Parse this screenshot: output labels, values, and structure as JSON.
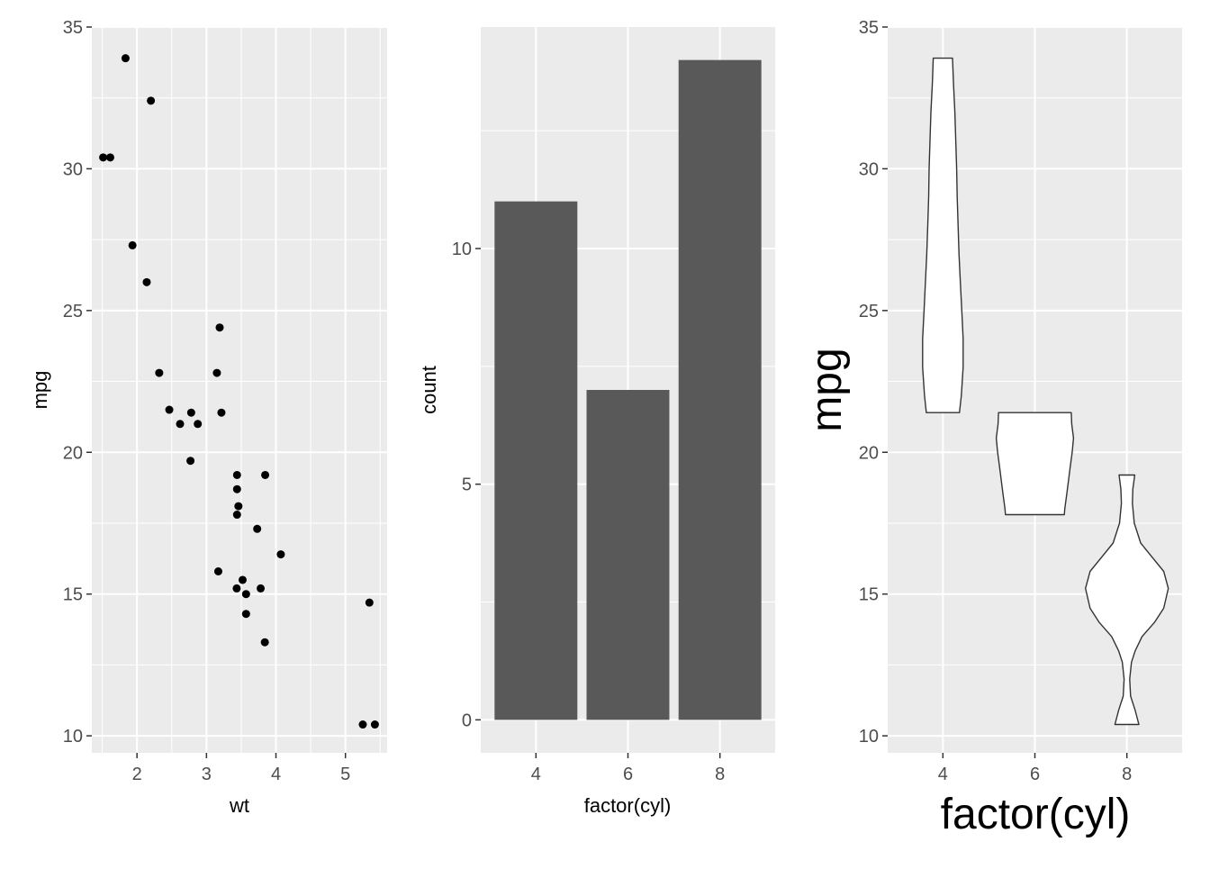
{
  "chart_data": [
    {
      "type": "scatter",
      "xlabel": "wt",
      "ylabel": "mpg",
      "xlim": [
        1.35,
        5.6
      ],
      "ylim": [
        9.4,
        35.0
      ],
      "x_ticks": [
        2,
        3,
        4,
        5
      ],
      "y_ticks": [
        10,
        15,
        20,
        25,
        30,
        35
      ],
      "grid": true,
      "points": [
        {
          "x": 2.62,
          "y": 21.0
        },
        {
          "x": 2.875,
          "y": 21.0
        },
        {
          "x": 2.32,
          "y": 22.8
        },
        {
          "x": 3.215,
          "y": 21.4
        },
        {
          "x": 3.44,
          "y": 18.7
        },
        {
          "x": 3.46,
          "y": 18.1
        },
        {
          "x": 3.57,
          "y": 14.3
        },
        {
          "x": 3.19,
          "y": 24.4
        },
        {
          "x": 3.15,
          "y": 22.8
        },
        {
          "x": 3.44,
          "y": 19.2
        },
        {
          "x": 3.44,
          "y": 17.8
        },
        {
          "x": 4.07,
          "y": 16.4
        },
        {
          "x": 3.73,
          "y": 17.3
        },
        {
          "x": 3.78,
          "y": 15.2
        },
        {
          "x": 5.25,
          "y": 10.4
        },
        {
          "x": 5.424,
          "y": 10.4
        },
        {
          "x": 5.345,
          "y": 14.7
        },
        {
          "x": 2.2,
          "y": 32.4
        },
        {
          "x": 1.615,
          "y": 30.4
        },
        {
          "x": 1.835,
          "y": 33.9
        },
        {
          "x": 2.465,
          "y": 21.5
        },
        {
          "x": 3.52,
          "y": 15.5
        },
        {
          "x": 3.435,
          "y": 15.2
        },
        {
          "x": 3.84,
          "y": 13.3
        },
        {
          "x": 3.845,
          "y": 19.2
        },
        {
          "x": 1.935,
          "y": 27.3
        },
        {
          "x": 2.14,
          "y": 26.0
        },
        {
          "x": 1.513,
          "y": 30.4
        },
        {
          "x": 3.17,
          "y": 15.8
        },
        {
          "x": 2.77,
          "y": 19.7
        },
        {
          "x": 3.57,
          "y": 15.0
        },
        {
          "x": 2.78,
          "y": 21.4
        }
      ]
    },
    {
      "type": "bar",
      "xlabel": "factor(cyl)",
      "ylabel": "count",
      "categories": [
        "4",
        "6",
        "8"
      ],
      "values": [
        11,
        7,
        14
      ],
      "ylim": [
        -0.7,
        14.7
      ],
      "y_ticks": [
        0,
        5,
        10
      ],
      "bar_color": "#595959",
      "grid": true
    },
    {
      "type": "violin",
      "xlabel": "factor(cyl)",
      "ylabel": "mpg",
      "categories": [
        "4",
        "6",
        "8"
      ],
      "ylim": [
        9.4,
        35.0
      ],
      "y_ticks": [
        10,
        15,
        20,
        25,
        30,
        35
      ],
      "grid": true,
      "fill": "#ffffff",
      "stroke": "#333333",
      "violins": [
        {
          "category": "4",
          "min": 21.4,
          "max": 33.9,
          "profile": [
            [
              21.4,
              0.36
            ],
            [
              22.0,
              0.4
            ],
            [
              23.0,
              0.44
            ],
            [
              24.0,
              0.44
            ],
            [
              25.0,
              0.41
            ],
            [
              26.0,
              0.38
            ],
            [
              27.0,
              0.35
            ],
            [
              28.0,
              0.33
            ],
            [
              29.0,
              0.31
            ],
            [
              30.0,
              0.3
            ],
            [
              31.0,
              0.28
            ],
            [
              32.0,
              0.26
            ],
            [
              33.0,
              0.23
            ],
            [
              33.9,
              0.21
            ]
          ]
        },
        {
          "category": "6",
          "min": 17.8,
          "max": 21.4,
          "profile": [
            [
              17.8,
              0.64
            ],
            [
              18.0,
              0.65
            ],
            [
              18.5,
              0.69
            ],
            [
              19.0,
              0.73
            ],
            [
              19.5,
              0.77
            ],
            [
              20.0,
              0.81
            ],
            [
              20.5,
              0.84
            ],
            [
              21.0,
              0.8
            ],
            [
              21.4,
              0.79
            ]
          ]
        },
        {
          "category": "8",
          "min": 10.4,
          "max": 19.2,
          "profile": [
            [
              10.4,
              0.26
            ],
            [
              10.9,
              0.18
            ],
            [
              11.4,
              0.08
            ],
            [
              12.0,
              0.06
            ],
            [
              12.6,
              0.1
            ],
            [
              13.0,
              0.18
            ],
            [
              13.5,
              0.33
            ],
            [
              14.0,
              0.6
            ],
            [
              14.5,
              0.8
            ],
            [
              15.2,
              0.9
            ],
            [
              15.8,
              0.8
            ],
            [
              16.3,
              0.55
            ],
            [
              16.8,
              0.3
            ],
            [
              17.5,
              0.16
            ],
            [
              18.2,
              0.12
            ],
            [
              18.7,
              0.13
            ],
            [
              19.2,
              0.17
            ]
          ]
        }
      ]
    }
  ]
}
